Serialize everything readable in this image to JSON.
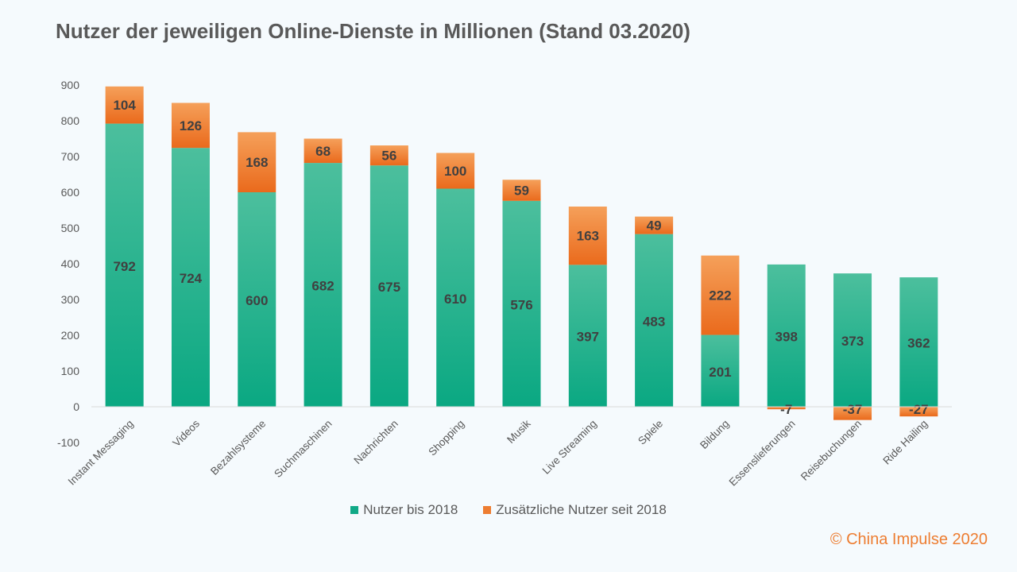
{
  "title": "Nutzer der jeweiligen Online-Dienste in Millionen (Stand 03.2020)",
  "copyright": "© China Impulse 2020",
  "colors": {
    "base_top": "#4cbf9d",
    "base_bottom": "#0aa882",
    "extra_top": "#f5a05a",
    "extra_bottom": "#ea6a1c",
    "background": "#f5fafd",
    "axis_text": "#595959",
    "value_text": "#404040"
  },
  "chart_data": {
    "type": "bar",
    "stacked": true,
    "categories": [
      "Instant Messaging",
      "Videos",
      "Bezahlsysteme",
      "Suchmaschinen",
      "Nachrichten",
      "Shopping",
      "Musik",
      "Live Streaming",
      "Spiele",
      "Bildung",
      "Essenslieferungen",
      "Reisebuchungen",
      "Ride Hailing"
    ],
    "series": [
      {
        "name": "Nutzer bis 2018",
        "values": [
          792,
          724,
          600,
          682,
          675,
          610,
          576,
          397,
          483,
          201,
          398,
          373,
          362
        ]
      },
      {
        "name": "Zusätzliche Nutzer seit 2018",
        "values": [
          104,
          126,
          168,
          68,
          56,
          100,
          59,
          163,
          49,
          222,
          -7,
          -37,
          -27
        ]
      }
    ],
    "ylim": [
      -100,
      900
    ],
    "yticks": [
      -100,
      0,
      100,
      200,
      300,
      400,
      500,
      600,
      700,
      800,
      900
    ],
    "grid": false,
    "legend_position": "bottom"
  }
}
